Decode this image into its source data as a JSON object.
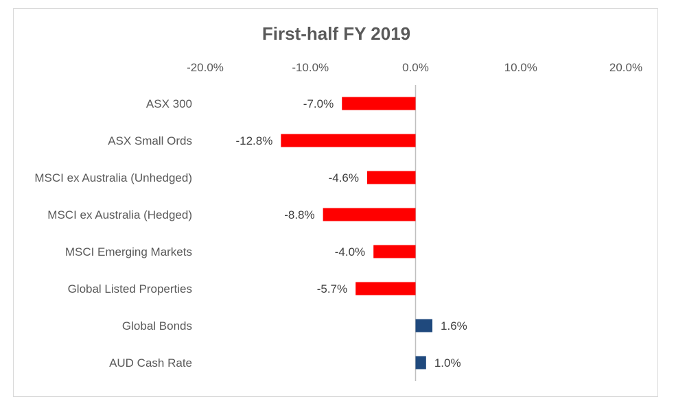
{
  "chart_data": {
    "type": "bar",
    "orientation": "horizontal",
    "title": "First-half FY 2019",
    "xlabel": "",
    "ylabel": "",
    "xlim": [
      -20,
      20
    ],
    "ticks": [
      -20,
      -10,
      0,
      10,
      20
    ],
    "tick_labels": [
      "-20.0%",
      "-10.0%",
      "0.0%",
      "10.0%",
      "20.0%"
    ],
    "axis_position": "top",
    "grid": false,
    "legend": "none",
    "categories": [
      "ASX 300",
      "ASX Small Ords",
      "MSCI ex Australia (Unhedged)",
      "MSCI ex Australia (Hedged)",
      "MSCI Emerging Markets",
      "Global Listed Properties",
      "Global Bonds",
      "AUD Cash Rate"
    ],
    "values": [
      -7.0,
      -12.8,
      -4.6,
      -8.8,
      -4.0,
      -5.7,
      1.6,
      1.0
    ],
    "value_labels": [
      "-7.0%",
      "-12.8%",
      "-4.6%",
      "-8.8%",
      "-4.0%",
      "-5.7%",
      "1.6%",
      "1.0%"
    ],
    "colors": {
      "negative": "#ff0000",
      "positive": "#1f497d",
      "zero_line": "#bfbfbf",
      "text": "#595959"
    }
  }
}
